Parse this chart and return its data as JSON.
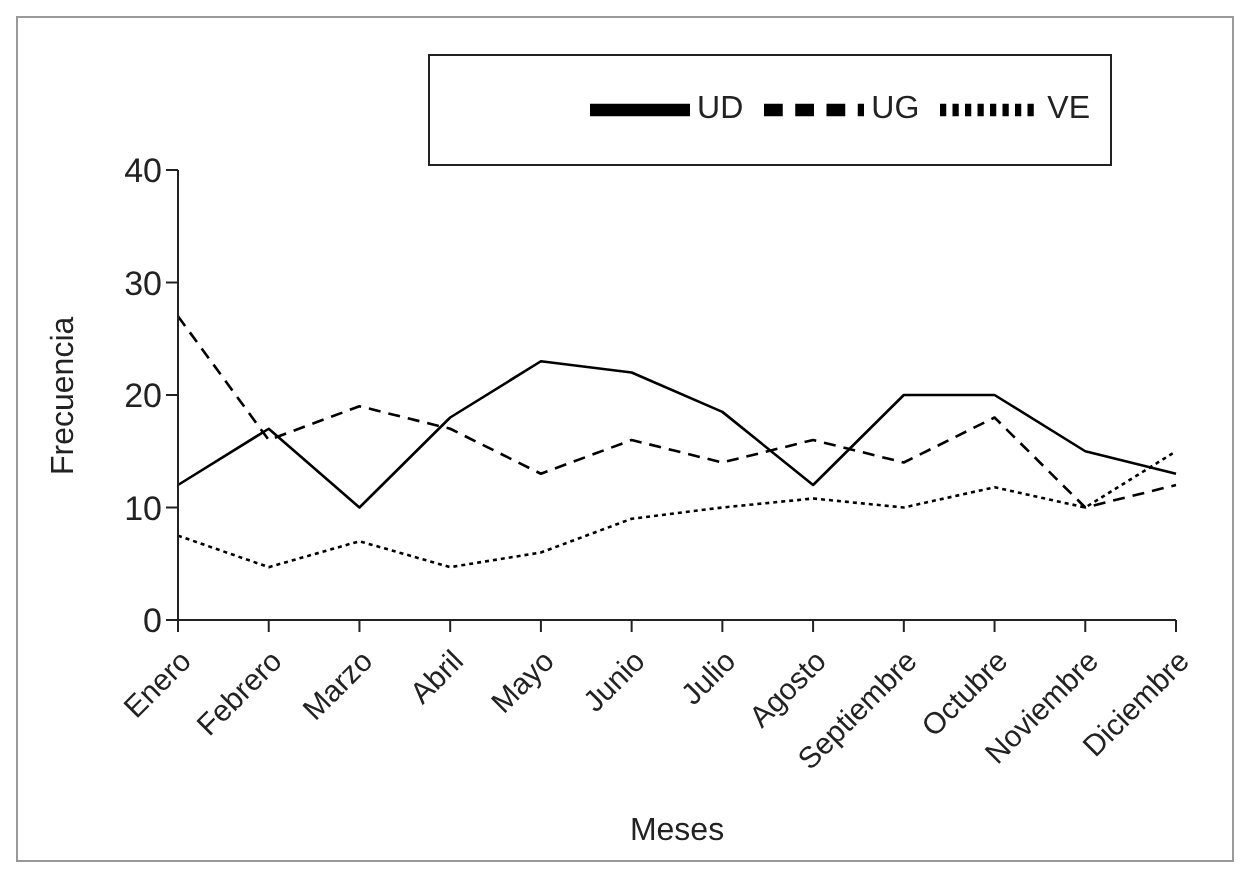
{
  "chart_data": {
    "type": "line",
    "xlabel": "Meses",
    "ylabel": "Frecuencia",
    "categories": [
      "Enero",
      "Febrero",
      "Marzo",
      "Abril",
      "Mayo",
      "Junio",
      "Julio",
      "Agosto",
      "Septiembre",
      "Octubre",
      "Noviembre",
      "Diciembre"
    ],
    "series": [
      {
        "name": "UD",
        "color": "#000000",
        "line_style": "solid",
        "values": [
          12,
          17,
          10,
          18,
          23,
          22,
          18.5,
          12,
          20,
          20,
          15,
          13
        ]
      },
      {
        "name": "UG",
        "color": "#000000",
        "line_style": "dashed",
        "values": [
          27,
          16,
          19,
          17,
          13,
          16,
          14,
          16,
          14,
          18,
          10,
          12
        ]
      },
      {
        "name": "VE",
        "color": "#000000",
        "line_style": "dotted",
        "values": [
          7.5,
          4.7,
          7,
          4.7,
          6,
          9,
          10,
          10.8,
          10,
          11.8,
          10,
          15
        ]
      }
    ],
    "ylim": [
      0,
      40
    ],
    "yticks": [
      0,
      10,
      20,
      30,
      40
    ],
    "grid": false,
    "legend": "top",
    "marker": "none"
  }
}
